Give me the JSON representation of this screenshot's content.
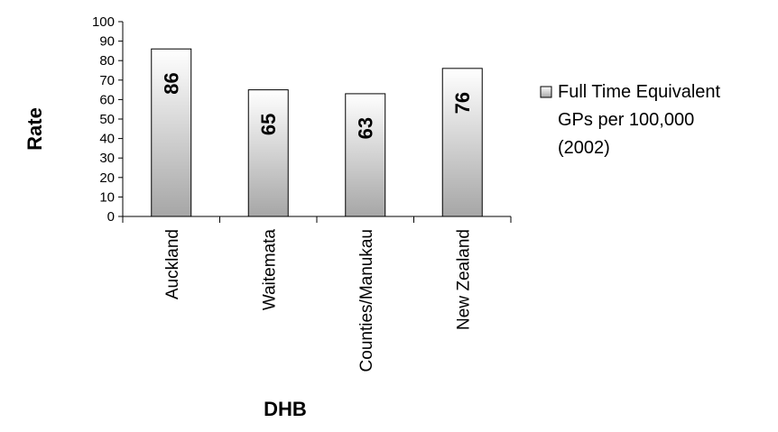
{
  "chart_data": {
    "type": "bar",
    "categories": [
      "Auckland",
      "Waitemata",
      "Counties/Manukau",
      "New Zealand"
    ],
    "series": [
      {
        "name": "Full Time Equivalent GPs per 100,000 (2002)",
        "values": [
          86,
          65,
          63,
          76
        ]
      }
    ],
    "data_labels": [
      "86",
      "65",
      "63",
      "76"
    ],
    "xlabel": "DHB",
    "ylabel": "Rate",
    "ylim": [
      0,
      100
    ],
    "yticks": [
      0,
      10,
      20,
      30,
      40,
      50,
      60,
      70,
      80,
      90,
      100
    ],
    "legend": {
      "position": "right",
      "lines": [
        "Full Time Equivalent",
        "GPs per 100,000",
        "(2002)"
      ]
    },
    "grid": false,
    "colors": {
      "bar_gradient_top": "#ffffff",
      "bar_gradient_bottom": "#a6a6a6",
      "bar_stroke": "#000000",
      "axis": "#000000"
    }
  }
}
